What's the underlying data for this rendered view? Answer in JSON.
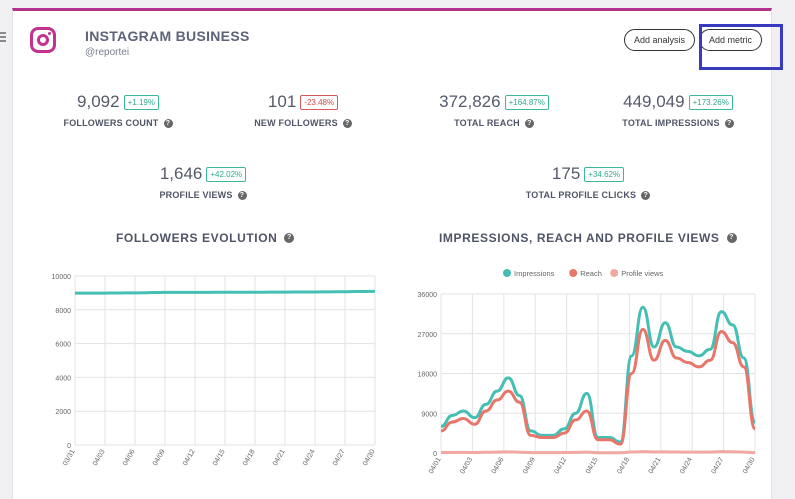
{
  "header": {
    "title": "INSTAGRAM BUSINESS",
    "handle": "@reportei",
    "add_analysis_label": "Add analysis",
    "add_metric_label": "Add metric",
    "brand_color": "#c2328e",
    "logo_icon": "instagram-icon"
  },
  "metrics": [
    {
      "value": "9,092",
      "change": "+1.19%",
      "trend": "positive",
      "label": "FOLLOWERS COUNT"
    },
    {
      "value": "101",
      "change": "-23.48%",
      "trend": "negative",
      "label": "NEW FOLLOWERS"
    },
    {
      "value": "372,826",
      "change": "+164.87%",
      "trend": "positive",
      "label": "TOTAL REACH"
    },
    {
      "value": "449,049",
      "change": "+173.26%",
      "trend": "positive",
      "label": "TOTAL IMPRESSIONS"
    },
    {
      "value": "1,646",
      "change": "+42.02%",
      "trend": "positive",
      "label": "PROFILE VIEWS"
    },
    {
      "value": "175",
      "change": "+34.62%",
      "trend": "positive",
      "label": "TOTAL PROFILE CLICKS"
    }
  ],
  "chart_data": [
    {
      "type": "line",
      "title": "FOLLOWERS EVOLUTION",
      "x_ticks": [
        "03/31",
        "04/03",
        "04/06",
        "04/09",
        "04/12",
        "04/15",
        "04/18",
        "04/21",
        "04/24",
        "04/27",
        "04/30"
      ],
      "ylim": [
        0,
        10000
      ],
      "y_ticks": [
        0,
        2000,
        4000,
        6000,
        8000,
        10000
      ],
      "grid": true,
      "series": [
        {
          "color": "#45bfb4",
          "values": [
            8985,
            8985,
            8990,
            8990,
            8995,
            9000,
            9000,
            9010,
            9020,
            9030,
            9030,
            9030,
            9030,
            9030,
            9035,
            9035,
            9035,
            9040,
            9040,
            9040,
            9045,
            9045,
            9050,
            9050,
            9055,
            9060,
            9065,
            9070,
            9080,
            9085,
            9092
          ]
        }
      ]
    },
    {
      "type": "line",
      "title": "IMPRESSIONS, REACH AND PROFILE VIEWS",
      "legend_position": "top",
      "x_ticks": [
        "04/01",
        "04/03",
        "04/06",
        "04/09",
        "04/12",
        "04/15",
        "04/18",
        "04/21",
        "04/24",
        "04/27",
        "04/30"
      ],
      "ylim": [
        0,
        36000
      ],
      "y_ticks": [
        0,
        9000,
        18000,
        27000,
        36000
      ],
      "grid": true,
      "series": [
        {
          "name": "Impressions",
          "color": "#45bfb4",
          "values": [
            6000,
            8500,
            9500,
            8000,
            11000,
            14000,
            17000,
            13000,
            5000,
            4000,
            4000,
            5500,
            9000,
            13500,
            3500,
            3500,
            2500,
            22000,
            33000,
            24000,
            29500,
            24000,
            23000,
            22000,
            23500,
            32000,
            29000,
            21500,
            7000
          ]
        },
        {
          "name": "Reach",
          "color": "#e6776a",
          "values": [
            5000,
            7000,
            7800,
            6500,
            9500,
            12000,
            14000,
            11500,
            4000,
            3500,
            3500,
            4500,
            7500,
            9500,
            3000,
            3000,
            2000,
            18000,
            28000,
            21000,
            25500,
            21500,
            20500,
            19500,
            21000,
            27500,
            25000,
            19500,
            5500
          ]
        },
        {
          "name": "Profile views",
          "color": "#f0a8a0",
          "values": [
            100,
            120,
            140,
            110,
            160,
            200,
            260,
            180,
            90,
            80,
            80,
            100,
            150,
            200,
            70,
            60,
            50,
            220,
            300,
            240,
            260,
            220,
            200,
            190,
            210,
            300,
            280,
            200,
            80
          ]
        }
      ]
    }
  ]
}
